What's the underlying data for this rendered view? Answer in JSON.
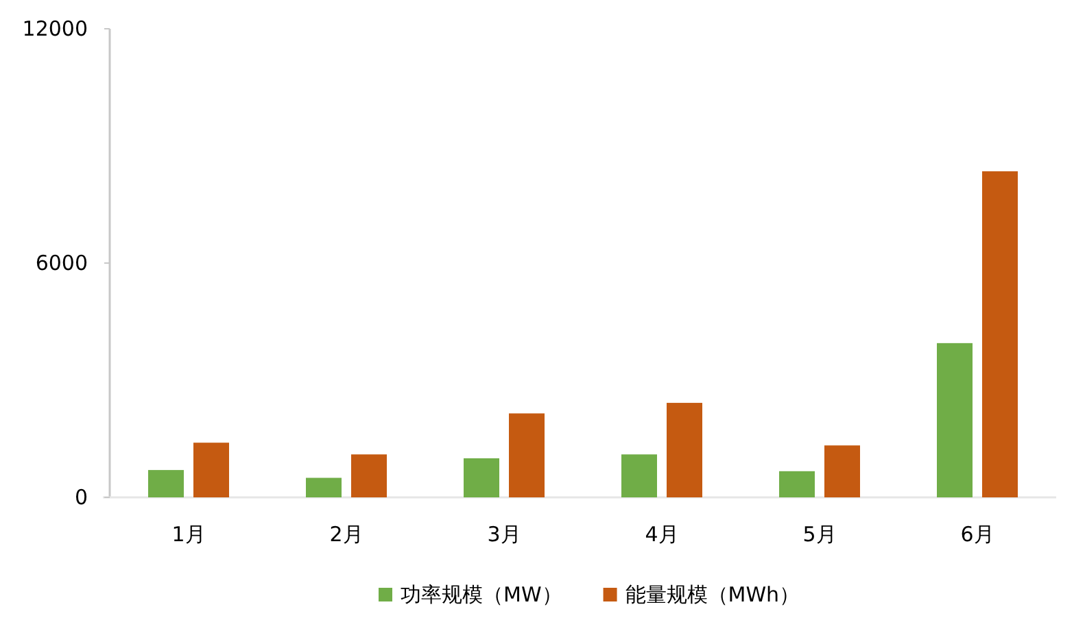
{
  "chart_data": {
    "type": "bar",
    "categories": [
      "1月",
      "2月",
      "3月",
      "4月",
      "5月",
      "6月"
    ],
    "series": [
      {
        "name": "功率规模（MW）",
        "color": "#70ad47",
        "values": [
          700,
          500,
          1000,
          1100,
          670,
          3950
        ]
      },
      {
        "name": "能量规模（MWh）",
        "color": "#c55a11",
        "values": [
          1400,
          1100,
          2150,
          2420,
          1330,
          8350
        ]
      }
    ],
    "ylim": [
      0,
      12000
    ],
    "yticks": [
      0,
      6000,
      12000
    ],
    "grid": false,
    "legend": "bottom"
  }
}
